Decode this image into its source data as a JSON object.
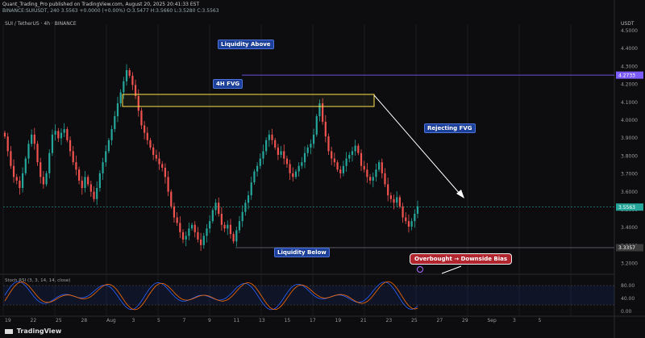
{
  "header": {
    "line1": "Quant_Trading_Pro published on TradingView.com, August 20, 2025 20:41:33 EST",
    "line2": "BINANCE:SUIUSDT, 240  3.5563  +0.0000 (+0.00%)  O:3.5477  H:3.5660  L:3.5280  C:3.5563",
    "legend": "SUI / TetherUS · 4h · BINANCE"
  },
  "price_axis": {
    "currency": "USDT",
    "ticks": [
      "4.5000",
      "4.4000",
      "4.3000",
      "4.2000",
      "4.1000",
      "4.0000",
      "3.9000",
      "3.8000",
      "3.7000",
      "3.6000",
      "3.5000",
      "3.4000",
      "3.3000",
      "3.2000"
    ],
    "tags": [
      {
        "text": "4.2733",
        "value": 4.2733,
        "color": "#7b5cff"
      },
      {
        "text": "3.5563",
        "value": 3.5563,
        "color": "#26a69a"
      },
      {
        "text": "3.3357",
        "value": 3.3357,
        "color": "#3a3a3a"
      }
    ]
  },
  "annotations": {
    "liquidity_above": "Liquidity Above",
    "fvg": "4H FVG",
    "rejecting": "Rejecting FVG",
    "liquidity_below": "Liquidity Below",
    "bias": "Overbought → Downside Bias"
  },
  "rsi_panel": {
    "title": "Stoch RSI (3, 3, 14, 14, close)",
    "ticks": [
      "80.00",
      "40.00",
      "0.00"
    ]
  },
  "x_axis": {
    "ticks": [
      "19",
      "22",
      "25",
      "28",
      "Aug",
      "3",
      "5",
      "7",
      "9",
      "11",
      "13",
      "15",
      "17",
      "19",
      "21",
      "23",
      "25",
      "27",
      "29",
      "Sep",
      "3",
      "5"
    ]
  },
  "colors": {
    "up": "#26a69a",
    "down": "#ef5350",
    "background": "#0d0d0f",
    "fvg_box": "#ffe34d",
    "stoch_k": "#2962ff",
    "stoch_d": "#ff6d00",
    "arrow": "#ffffff"
  },
  "watermark": "TradingView",
  "chart_data": {
    "type": "candlestick",
    "timeframe": "4h",
    "symbol": "SUIUSDT",
    "ylim": [
      3.2,
      4.55
    ],
    "close_series": [
      3.94,
      3.86,
      3.78,
      3.72,
      3.7,
      3.66,
      3.74,
      3.82,
      3.9,
      3.95,
      3.9,
      3.8,
      3.72,
      3.68,
      3.74,
      3.85,
      3.95,
      3.97,
      3.93,
      3.96,
      3.98,
      3.92,
      3.86,
      3.8,
      3.76,
      3.7,
      3.66,
      3.72,
      3.68,
      3.64,
      3.6,
      3.66,
      3.74,
      3.8,
      3.86,
      3.92,
      3.98,
      4.05,
      4.12,
      4.18,
      4.24,
      4.3,
      4.27,
      4.22,
      4.16,
      4.08,
      4.0,
      3.96,
      3.92,
      3.88,
      3.84,
      3.82,
      3.79,
      3.77,
      3.72,
      3.64,
      3.56,
      3.5,
      3.47,
      3.42,
      3.38,
      3.4,
      3.44,
      3.46,
      3.42,
      3.38,
      3.35,
      3.4,
      3.44,
      3.48,
      3.54,
      3.58,
      3.52,
      3.46,
      3.44,
      3.46,
      3.41,
      3.37,
      3.43,
      3.48,
      3.53,
      3.58,
      3.62,
      3.69,
      3.75,
      3.78,
      3.82,
      3.86,
      3.92,
      3.95,
      3.92,
      3.88,
      3.84,
      3.86,
      3.82,
      3.79,
      3.74,
      3.72,
      3.75,
      3.78,
      3.8,
      3.85,
      3.88,
      3.9,
      3.95,
      4.05,
      4.12,
      4.02,
      3.94,
      3.86,
      3.82,
      3.8,
      3.76,
      3.74,
      3.78,
      3.82,
      3.84,
      3.86,
      3.89,
      3.85,
      3.78,
      3.76,
      3.72,
      3.7,
      3.72,
      3.76,
      3.8,
      3.74,
      3.68,
      3.62,
      3.6,
      3.58,
      3.61,
      3.56,
      3.5,
      3.48,
      3.45,
      3.48,
      3.52,
      3.56
    ]
  }
}
